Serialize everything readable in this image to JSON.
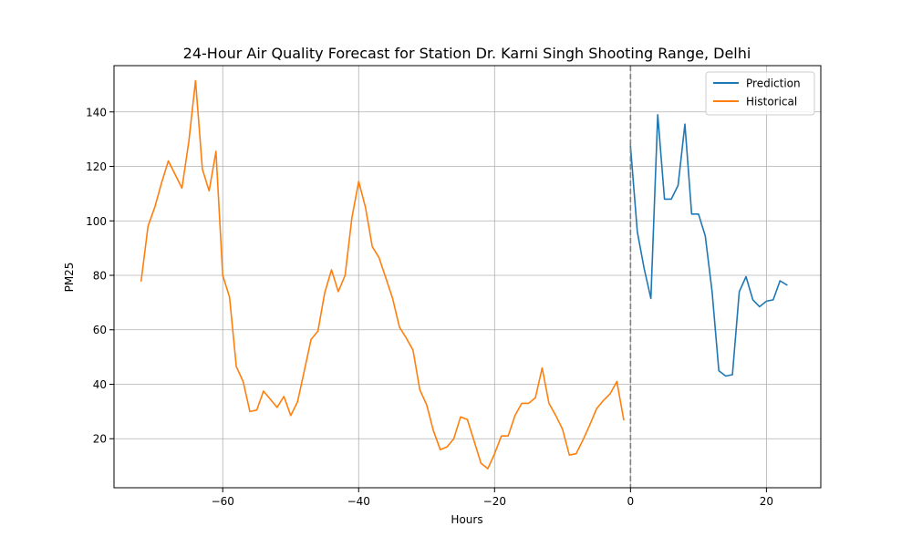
{
  "chart_data": {
    "type": "line",
    "title": "24-Hour Air Quality Forecast for Station Dr. Karni Singh Shooting Range, Delhi",
    "xlabel": "Hours",
    "ylabel": "PM25",
    "xlim": [
      -76,
      28
    ],
    "ylim": [
      2,
      157
    ],
    "x_ticks": [
      -60,
      -40,
      -20,
      0,
      20
    ],
    "x_tick_labels": [
      "−60",
      "−40",
      "−20",
      "0",
      "20"
    ],
    "y_ticks": [
      20,
      40,
      60,
      80,
      100,
      120,
      140
    ],
    "y_tick_labels": [
      "20",
      "40",
      "60",
      "80",
      "100",
      "120",
      "140"
    ],
    "grid": true,
    "legend_position": "top-right",
    "vline": {
      "x": 0,
      "color": "#808080",
      "style": "dashed"
    },
    "series": [
      {
        "name": "Prediction",
        "color": "#1f77b4",
        "x": [
          0,
          1,
          2,
          3,
          4,
          5,
          6,
          7,
          8,
          9,
          10,
          11,
          12,
          13,
          14,
          15,
          16,
          17,
          18,
          19,
          20,
          21,
          22,
          23
        ],
        "y": [
          127.5,
          96,
          82.5,
          71.5,
          139,
          108,
          108,
          113,
          135.5,
          102.5,
          102.5,
          94.5,
          74,
          45,
          43,
          43.5,
          74,
          79.5,
          71,
          68.5,
          70.5,
          71,
          78,
          76.5
        ]
      },
      {
        "name": "Historical",
        "color": "#ff7f0e",
        "x": [
          -72,
          -71,
          -70,
          -69,
          -68,
          -67,
          -66,
          -65,
          -64,
          -63,
          -62,
          -61,
          -60,
          -59,
          -58,
          -57,
          -56,
          -55,
          -54,
          -53,
          -52,
          -51,
          -50,
          -49,
          -48,
          -47,
          -46,
          -45,
          -44,
          -43,
          -42,
          -41,
          -40,
          -39,
          -38,
          -37,
          -36,
          -35,
          -34,
          -33,
          -32,
          -31,
          -30,
          -29,
          -28,
          -27,
          -26,
          -25,
          -24,
          -23,
          -22,
          -21,
          -20,
          -19,
          -18,
          -17,
          -16,
          -15,
          -14,
          -13,
          -12,
          -11,
          -10,
          -9,
          -8,
          -7,
          -6,
          -5,
          -4,
          -3,
          -2,
          -1
        ],
        "y": [
          78,
          98,
          105,
          114,
          122,
          117,
          112,
          129,
          151.5,
          119,
          111,
          125.5,
          80,
          72,
          46.5,
          41,
          30,
          30.5,
          37.5,
          34.5,
          31.5,
          35.5,
          28.5,
          33.5,
          45,
          56.5,
          59.5,
          73.5,
          82,
          74,
          80,
          101,
          114.5,
          105,
          90.5,
          86.5,
          79,
          71.5,
          61,
          57,
          52.5,
          38,
          32.5,
          23,
          16,
          17,
          20,
          28,
          27,
          19,
          11,
          9,
          14.5,
          21,
          21,
          28.5,
          33,
          33,
          35,
          46,
          33,
          28.5,
          23.5,
          14,
          14.5,
          19.5,
          25,
          31,
          34,
          36.5,
          41,
          27
        ]
      }
    ]
  }
}
